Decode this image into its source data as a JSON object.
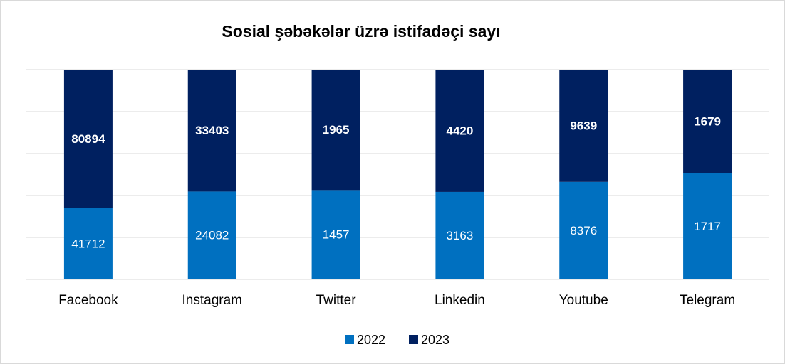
{
  "chart_data": {
    "type": "bar",
    "stacking": "percent",
    "title": "Sosial şəbəkələr üzrə istifadəçi sayı",
    "categories": [
      "Facebook",
      "Instagram",
      "Twitter",
      "Linkedin",
      "Youtube",
      "Telegram"
    ],
    "series": [
      {
        "name": "2022",
        "color": "#0070c0",
        "values": [
          41712,
          24082,
          1457,
          3163,
          8376,
          1717
        ]
      },
      {
        "name": "2023",
        "color": "#002060",
        "values": [
          80894,
          33403,
          1965,
          4420,
          9639,
          1679
        ]
      }
    ],
    "ylim": [
      0,
      100
    ],
    "yticks": [
      0,
      20,
      40,
      60,
      80,
      100
    ],
    "ytick_labels_visible": false,
    "grid": true,
    "legend": "bottom"
  }
}
